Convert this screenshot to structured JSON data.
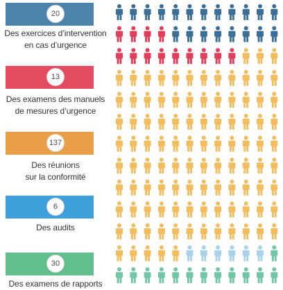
{
  "colors": {
    "unit_default": "#f2bd5f",
    "pale_blue": "#a9d2ea"
  },
  "icon": "person-icon",
  "chart_data": {
    "type": "pictograph",
    "columns": 12,
    "rows": 13,
    "categories": [
      {
        "count": 20,
        "label_lines": [
          "Des exercices d’intervention",
          "en cas d’urgence"
        ],
        "color": "#3b6f97",
        "bar_color": "#4b83ad"
      },
      {
        "count": 13,
        "label_lines": [
          "Des examens des manuels",
          "de mesures d’urgence"
        ],
        "color": "#e03e5a",
        "bar_color": "#e44a60"
      },
      {
        "count": 137,
        "label_lines": [
          "Des réunions",
          "sur la conformité"
        ],
        "color": "#f2bd5f",
        "bar_color": "#ea9f47"
      },
      {
        "count": 6,
        "label_lines": [
          "Des audits"
        ],
        "color": "#a9d2ea",
        "bar_color": "#3e9fdb"
      },
      {
        "count": 30,
        "label_lines": [
          "Des examens de rapports"
        ],
        "color": "#72c6a7",
        "bar_color": "#62bf8c"
      }
    ],
    "units_by_row": [
      [
        "blue",
        "blue",
        "blue",
        "blue",
        "blue",
        "blue",
        "blue",
        "blue",
        "blue",
        "blue",
        "blue",
        "blue"
      ],
      [
        "red",
        "red",
        "red",
        "red",
        "blue",
        "blue",
        "blue",
        "blue",
        "blue",
        "blue",
        "blue",
        "blue"
      ],
      [
        "red",
        "red",
        "red",
        "red",
        "red",
        "red",
        "red",
        "red",
        "red",
        "orange",
        "orange",
        "orange"
      ],
      [
        "orange",
        "orange",
        "orange",
        "orange",
        "orange",
        "orange",
        "orange",
        "orange",
        "orange",
        "orange",
        "orange",
        "orange"
      ],
      [
        "orange",
        "orange",
        "orange",
        "orange",
        "orange",
        "orange",
        "orange",
        "orange",
        "orange",
        "orange",
        "orange",
        "orange"
      ],
      [
        "orange",
        "orange",
        "orange",
        "orange",
        "orange",
        "orange",
        "orange",
        "orange",
        "orange",
        "orange",
        "orange",
        "orange"
      ],
      [
        "orange",
        "orange",
        "orange",
        "orange",
        "orange",
        "orange",
        "orange",
        "orange",
        "orange",
        "orange",
        "orange",
        "orange"
      ],
      [
        "orange",
        "orange",
        "orange",
        "orange",
        "orange",
        "orange",
        "orange",
        "orange",
        "orange",
        "orange",
        "orange",
        "orange"
      ],
      [
        "orange",
        "orange",
        "orange",
        "orange",
        "orange",
        "orange",
        "orange",
        "orange",
        "orange",
        "orange",
        "orange",
        "orange"
      ],
      [
        "orange",
        "orange",
        "orange",
        "orange",
        "orange",
        "orange",
        "orange",
        "orange",
        "orange",
        "orange",
        "orange",
        "orange"
      ],
      [
        "orange",
        "orange",
        "orange",
        "orange",
        "orange",
        "orange",
        "orange",
        "orange",
        "orange",
        "orange",
        "orange",
        "orange"
      ],
      [
        "orange",
        "orange",
        "orange",
        "orange",
        "orange",
        "orange",
        "orange",
        "orange",
        "orange",
        "orange",
        "orange",
        "orange"
      ],
      [
        "orange",
        "orange",
        "orange",
        "orange",
        "orange",
        "orange",
        "orange",
        "orange",
        "orange",
        "orange",
        "orange",
        "orange"
      ]
    ]
  }
}
